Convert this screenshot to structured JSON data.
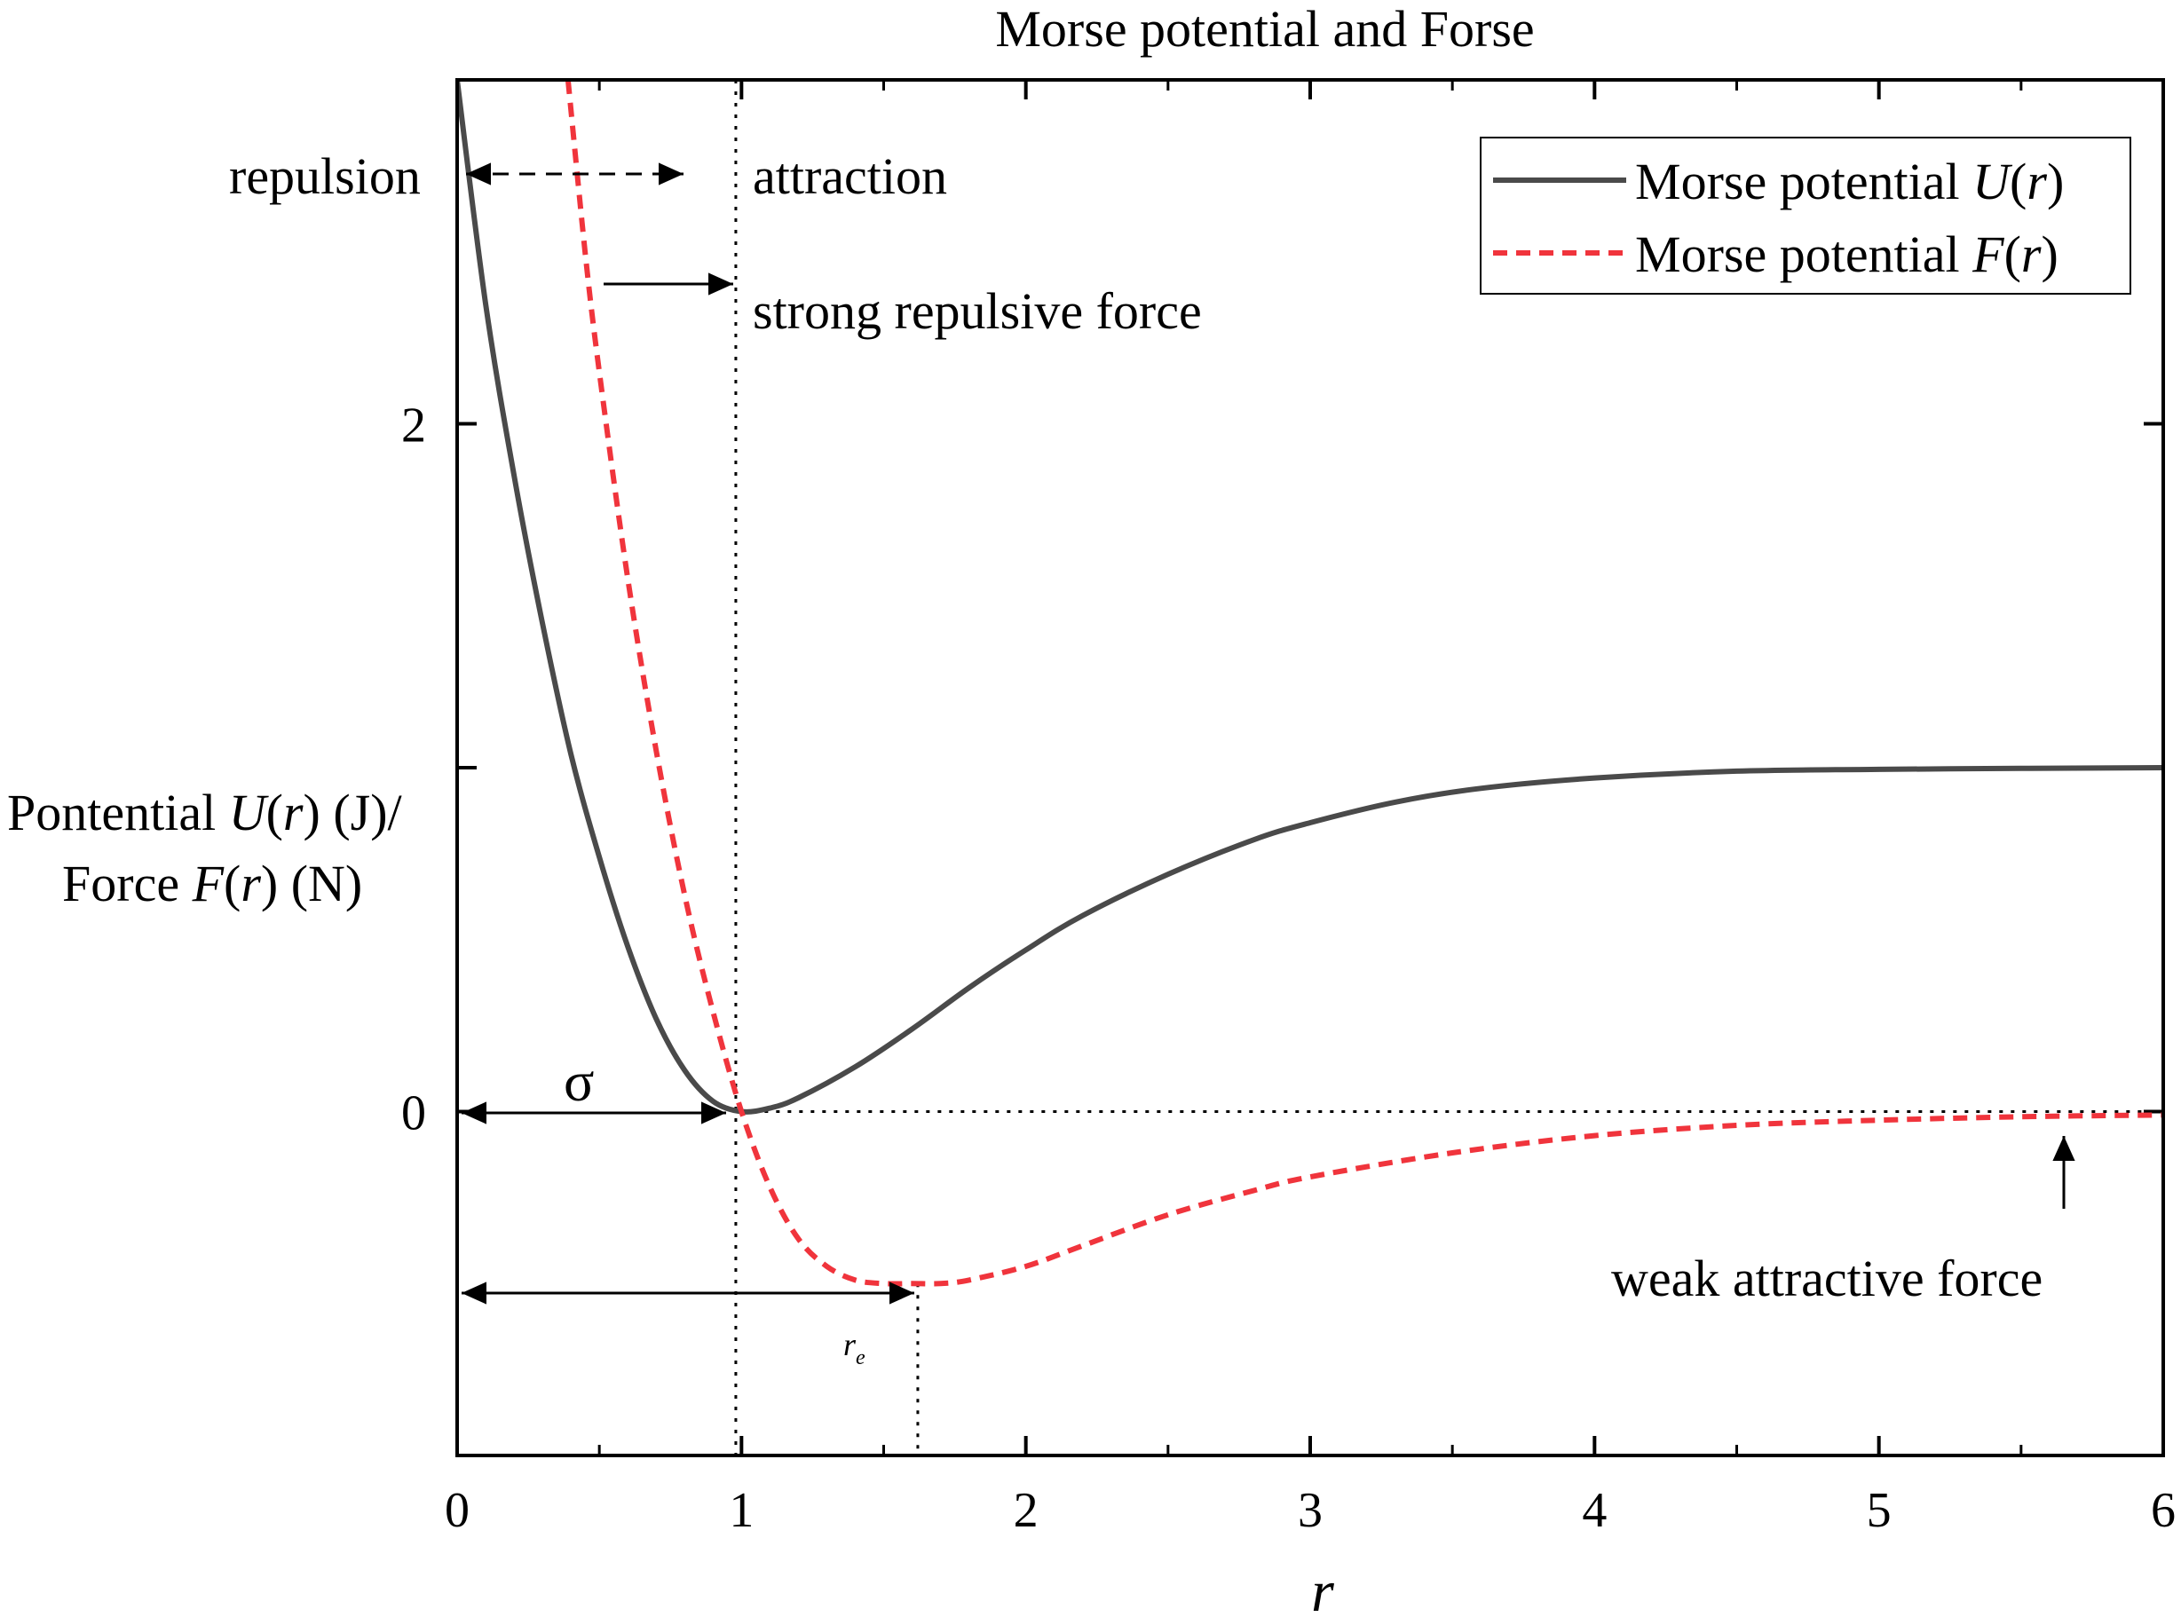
{
  "chart_data": {
    "type": "line",
    "title": "Morse potential and Forse",
    "xlabel": "r",
    "ylabel_line1": [
      "Pontential ",
      "U",
      "(",
      "r",
      ") (J)/"
    ],
    "ylabel_line2": [
      "Force ",
      "F",
      "(",
      "r",
      ") (N)"
    ],
    "xlim": [
      0,
      6
    ],
    "ylim": [
      -1,
      3
    ],
    "x_ticks": [
      "0",
      "1",
      "2",
      "3",
      "4",
      "5",
      "6"
    ],
    "y_ticks": [
      "0",
      "2"
    ],
    "series": [
      {
        "name": "Morse potential U(r)",
        "legend_parts": [
          "Morse potential ",
          "U",
          "(",
          "r",
          ")"
        ],
        "style": "solid",
        "color": "#4a4a4a",
        "x": [
          0,
          0.1,
          0.2,
          0.3,
          0.4,
          0.5,
          0.6,
          0.7,
          0.8,
          0.9,
          1.0,
          1.1,
          1.2,
          1.4,
          1.6,
          1.8,
          2.0,
          2.2,
          2.5,
          2.8,
          3.0,
          3.3,
          3.6,
          4.0,
          4.5,
          5.0,
          5.5,
          6.0
        ],
        "values": [
          3.0,
          2.35,
          1.85,
          1.42,
          1.04,
          0.74,
          0.48,
          0.27,
          0.12,
          0.03,
          0.0,
          0.01,
          0.04,
          0.13,
          0.24,
          0.36,
          0.47,
          0.57,
          0.69,
          0.79,
          0.84,
          0.9,
          0.94,
          0.97,
          0.99,
          0.995,
          0.998,
          1.0
        ]
      },
      {
        "name": "Morse potential F(r)",
        "legend_parts": [
          "Morse potential ",
          "F",
          "(",
          "r",
          ")"
        ],
        "style": "dashed",
        "color": "#f0343c",
        "x": [
          0.39,
          0.45,
          0.5,
          0.6,
          0.7,
          0.8,
          0.9,
          1.0,
          1.1,
          1.2,
          1.3,
          1.4,
          1.5,
          1.6,
          1.7,
          1.8,
          2.0,
          2.2,
          2.5,
          2.8,
          3.0,
          3.5,
          4.0,
          4.5,
          5.0,
          5.5,
          6.0
        ],
        "values": [
          3.0,
          2.5,
          2.15,
          1.55,
          1.05,
          0.63,
          0.29,
          0.0,
          -0.22,
          -0.37,
          -0.45,
          -0.49,
          -0.5,
          -0.5,
          -0.5,
          -0.49,
          -0.45,
          -0.39,
          -0.3,
          -0.23,
          -0.19,
          -0.12,
          -0.07,
          -0.04,
          -0.025,
          -0.015,
          -0.01
        ]
      }
    ],
    "reference_lines": {
      "vertical_sigma": 0.98,
      "vertical_re": 1.62,
      "horizontal_y": 0
    },
    "annotations": {
      "repulsion": "repulsion",
      "attraction": "attraction",
      "strong_repulsive_force": "strong repulsive force",
      "weak_attractive_force": "weak attractive force",
      "sigma": "σ",
      "re_main": "r",
      "re_sub": "e"
    }
  }
}
